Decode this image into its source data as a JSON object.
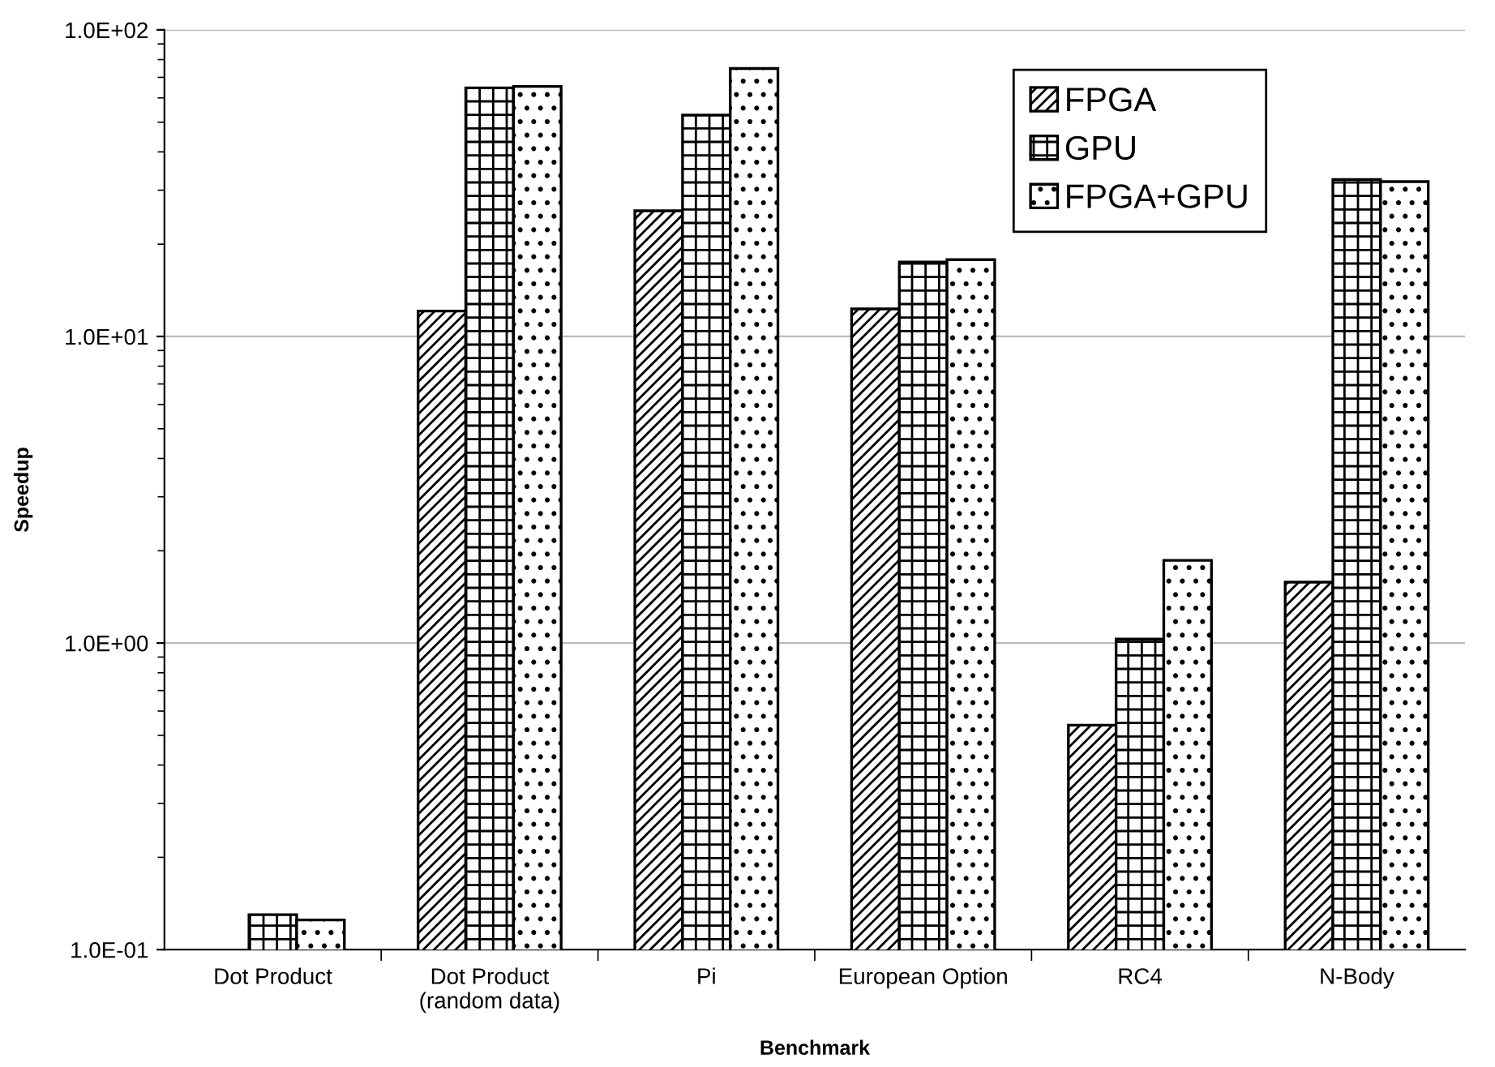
{
  "chart_data": {
    "type": "bar",
    "xlabel": "Benchmark",
    "ylabel": "Speedup",
    "categories": [
      "Dot Product",
      "Dot Product\n(random data)",
      "Pi",
      "European Option",
      "RC4",
      "N-Body"
    ],
    "series": [
      {
        "name": "FPGA",
        "color": "#000000",
        "values": [
          null,
          12.1,
          25.7,
          12.3,
          0.54,
          1.58
        ]
      },
      {
        "name": "GPU",
        "color": "#000000",
        "values": [
          0.13,
          64.7,
          52.7,
          17.5,
          1.03,
          32.5
        ]
      },
      {
        "name": "FPGA+GPU",
        "color": "#000000",
        "values": [
          0.125,
          65.4,
          74.8,
          17.8,
          1.86,
          32.0
        ]
      }
    ],
    "log": "y",
    "ylim": [
      0.1,
      100
    ],
    "yticks": [
      {
        "value": 0.1,
        "label": "1.0E-01"
      },
      {
        "value": 1,
        "label": "1.0E+00"
      },
      {
        "value": 10,
        "label": "1.0E+01"
      },
      {
        "value": 100,
        "label": "1.0E+02"
      }
    ],
    "grid": "y",
    "legend": "top right"
  }
}
